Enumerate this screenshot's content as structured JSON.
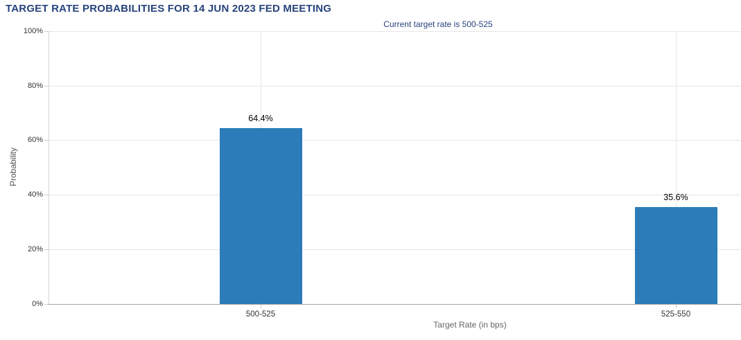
{
  "chart": {
    "title": "TARGET RATE PROBABILITIES FOR 14 JUN 2023 FED MEETING",
    "subtitle": "Current target rate is 500-525"
  },
  "chart_data": {
    "type": "bar",
    "title": "TARGET RATE PROBABILITIES FOR 14 JUN 2023 FED MEETING",
    "subtitle": "Current target rate is 500-525",
    "categories": [
      "500-525",
      "525-550"
    ],
    "values": [
      64.4,
      35.6
    ],
    "value_labels": [
      "64.4%",
      "35.6%"
    ],
    "xlabel": "Target Rate (in bps)",
    "ylabel": "Probability",
    "ylim": [
      0,
      100
    ],
    "yticks": [
      "0%",
      "20%",
      "40%",
      "60%",
      "80%",
      "100%"
    ],
    "grid": true,
    "legend": "none",
    "colors": {
      "bar_fill": "#2b7cb8",
      "title_text": "#27437c",
      "gridline": "#e6e6e6",
      "axis_line": "#a3a3a3"
    }
  }
}
